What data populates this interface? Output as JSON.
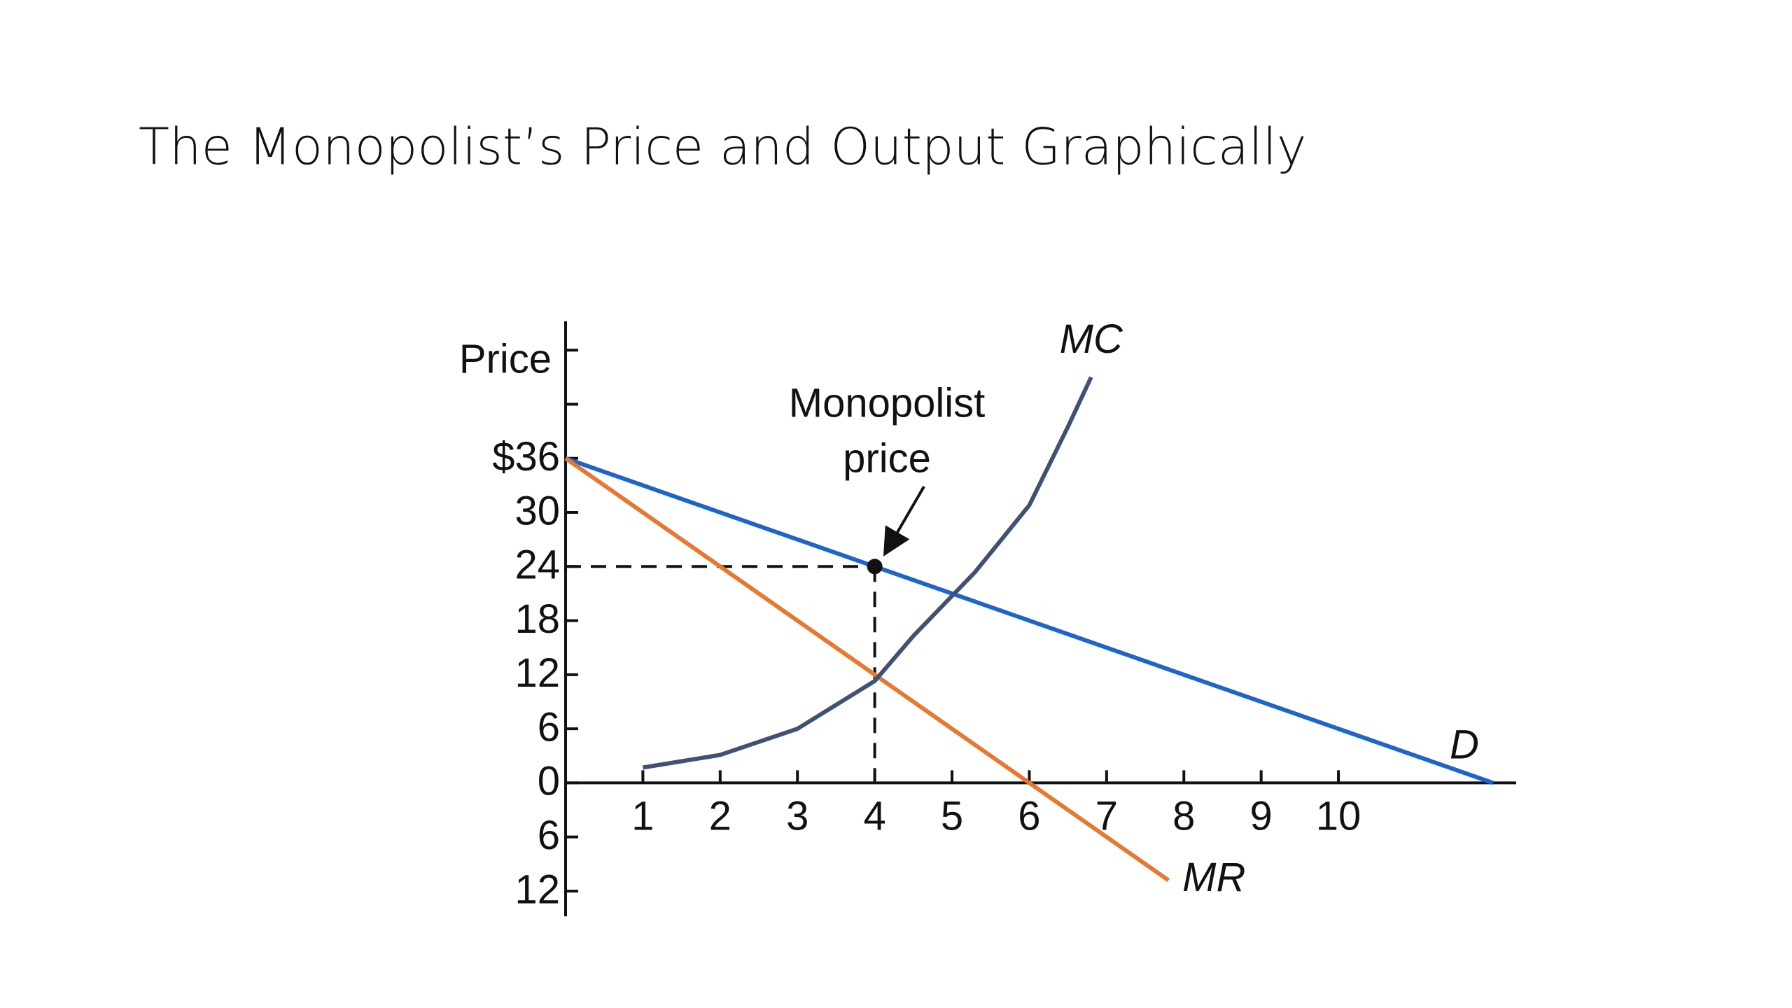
{
  "chart_data": {
    "type": "line",
    "title": "The Monopolist’s Price and Output Graphically",
    "ylabel": "Price",
    "xlim": [
      0,
      12.3
    ],
    "ylim": [
      -14.8,
      51.2
    ],
    "xticks": [
      1,
      2,
      3,
      4,
      5,
      6,
      7,
      8,
      9,
      10
    ],
    "yticks": [
      {
        "value": 48,
        "label": null
      },
      {
        "value": 42,
        "label": null
      },
      {
        "value": 36,
        "label": "$36"
      },
      30,
      24,
      18,
      12,
      6,
      0,
      {
        "value": -6,
        "label": "6"
      },
      {
        "value": -12,
        "label": "12"
      }
    ],
    "series": [
      {
        "name": "D",
        "color": "#1f64c8",
        "x": [
          0,
          12
        ],
        "values": [
          36,
          0
        ]
      },
      {
        "name": "MR",
        "color": "#e8782f",
        "x": [
          0,
          7.8
        ],
        "values": [
          36,
          -10.8
        ]
      },
      {
        "name": "MC",
        "color": "#3f5276",
        "x": [
          1,
          2,
          3,
          4,
          4.5,
          5.3,
          6,
          6.5,
          6.8
        ],
        "values": [
          1.7,
          3.1,
          6,
          11.3,
          16.3,
          23.4,
          30.8,
          39.5,
          45
        ]
      }
    ],
    "highlight": {
      "x": 4,
      "y": 24
    },
    "annotation": [
      "Monopolist",
      "price"
    ]
  }
}
